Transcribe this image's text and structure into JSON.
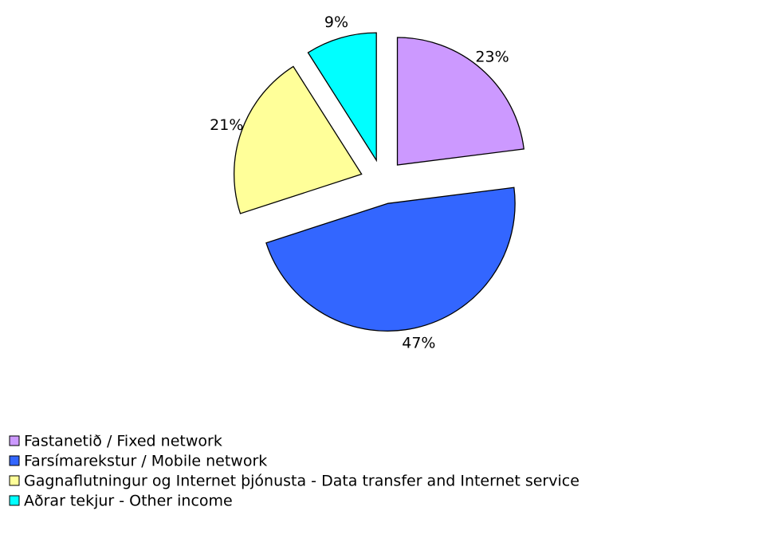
{
  "chart_data": {
    "type": "pie",
    "categories": [
      "Fastanetið / Fixed network",
      "Farsímarekstur / Mobile network",
      "Gagnaflutningur og Internet þjónusta - Data transfer and Internet service",
      "Aðrar tekjur - Other income"
    ],
    "values": [
      23,
      47,
      21,
      9
    ],
    "value_labels": [
      "23%",
      "47%",
      "21%",
      "9%"
    ],
    "colors": [
      "#cc99ff",
      "#3366ff",
      "#ffff99",
      "#00ffff"
    ],
    "exploded": true,
    "legend": "bottom-left"
  }
}
